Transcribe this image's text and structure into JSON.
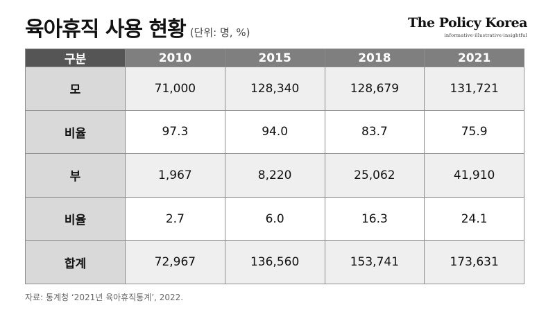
{
  "header": {
    "title": "육아휴직 사용 현황",
    "unit": "(단위: 명, %)"
  },
  "brand": {
    "name": "The Policy Korea",
    "tagline": "informative·illustrative·insightful"
  },
  "table": {
    "columns": [
      "구분",
      "2010",
      "2015",
      "2018",
      "2021"
    ],
    "rows": [
      {
        "label": "모",
        "values": [
          "71,000",
          "128,340",
          "128,679",
          "131,721"
        ]
      },
      {
        "label": "비율",
        "values": [
          "97.3",
          "94.0",
          "83.7",
          "75.9"
        ]
      },
      {
        "label": "부",
        "values": [
          "1,967",
          "8,220",
          "25,062",
          "41,910"
        ]
      },
      {
        "label": "비율",
        "values": [
          "2.7",
          "6.0",
          "16.3",
          "24.1"
        ]
      },
      {
        "label": "합계",
        "values": [
          "72,967",
          "136,560",
          "153,741",
          "173,631"
        ]
      }
    ]
  },
  "footer": {
    "source": "자료: 통계청 ‘2021년 육아휴직통계’, 2022."
  },
  "colors": {
    "header_bg": "#7f7f7f",
    "header_corner_bg": "#555555",
    "row_label_bg": "#d9d9d9",
    "shaded_row_bg": "#efefef",
    "border": "#8c8c8c"
  }
}
